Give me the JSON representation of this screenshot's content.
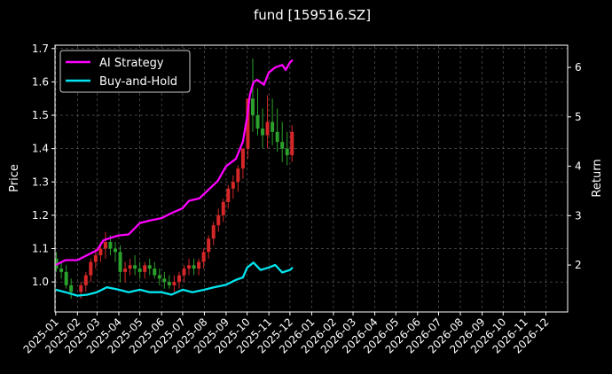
{
  "chart_data": {
    "type": "line",
    "title": "fund [159516.SZ]",
    "ylabel_left": "Price",
    "ylabel_right": "Return",
    "ylim_left": [
      0.91,
      1.71
    ],
    "ylim_right": [
      1.05,
      6.45
    ],
    "yticks_left": [
      "1.0",
      "1.1",
      "1.2",
      "1.3",
      "1.4",
      "1.5",
      "1.6",
      "1.7"
    ],
    "yticks_right": [
      "2",
      "3",
      "4",
      "5",
      "6"
    ],
    "x_tick_labels": [
      "2025-01",
      "2025-02",
      "2025-03",
      "2025-04",
      "2025-05",
      "2025-06",
      "2025-07",
      "2025-08",
      "2025-09",
      "2025-10",
      "2025-11",
      "2025-12",
      "2026-01",
      "2026-02",
      "2026-03",
      "2026-04",
      "2026-05",
      "2026-06",
      "2026-07",
      "2026-08",
      "2026-09",
      "2026-10",
      "2026-11",
      "2026-12"
    ],
    "grid": true,
    "legend_position": "top-left",
    "candles": {
      "up_color": "#d62728",
      "down_color": "#2ca02c",
      "dates": [
        "2025-01-02",
        "2025-01-09",
        "2025-01-16",
        "2025-01-23",
        "2025-02-06",
        "2025-02-13",
        "2025-02-20",
        "2025-02-27",
        "2025-03-06",
        "2025-03-13",
        "2025-03-20",
        "2025-03-27",
        "2025-04-03",
        "2025-04-10",
        "2025-04-17",
        "2025-04-24",
        "2025-05-01",
        "2025-05-08",
        "2025-05-15",
        "2025-05-22",
        "2025-05-29",
        "2025-06-05",
        "2025-06-12",
        "2025-06-19",
        "2025-06-26",
        "2025-07-03",
        "2025-07-10",
        "2025-07-17",
        "2025-07-24",
        "2025-07-31",
        "2025-08-07",
        "2025-08-14",
        "2025-08-21",
        "2025-08-28",
        "2025-09-04",
        "2025-09-11",
        "2025-09-18",
        "2025-09-25",
        "2025-10-02",
        "2025-10-09",
        "2025-10-16",
        "2025-10-23",
        "2025-10-30",
        "2025-11-06",
        "2025-11-13",
        "2025-11-20",
        "2025-11-27",
        "2025-12-04"
      ],
      "open": [
        1.07,
        1.04,
        1.03,
        0.99,
        0.97,
        0.99,
        1.02,
        1.06,
        1.08,
        1.1,
        1.12,
        1.1,
        1.09,
        1.03,
        1.04,
        1.05,
        1.04,
        1.03,
        1.05,
        1.04,
        1.02,
        1.01,
        1.0,
        0.99,
        1.0,
        1.02,
        1.04,
        1.05,
        1.04,
        1.06,
        1.09,
        1.13,
        1.17,
        1.2,
        1.24,
        1.28,
        1.3,
        1.34,
        1.4,
        1.55,
        1.5,
        1.46,
        1.44,
        1.48,
        1.45,
        1.42,
        1.4,
        1.38
      ],
      "high": [
        1.09,
        1.06,
        1.05,
        1.01,
        1.0,
        1.03,
        1.07,
        1.1,
        1.12,
        1.15,
        1.14,
        1.12,
        1.11,
        1.06,
        1.07,
        1.08,
        1.06,
        1.06,
        1.07,
        1.06,
        1.04,
        1.03,
        1.02,
        1.02,
        1.03,
        1.05,
        1.07,
        1.07,
        1.07,
        1.1,
        1.14,
        1.18,
        1.22,
        1.25,
        1.29,
        1.32,
        1.35,
        1.4,
        1.52,
        1.67,
        1.58,
        1.52,
        1.56,
        1.55,
        1.52,
        1.48,
        1.45,
        1.47
      ],
      "low": [
        1.03,
        1.01,
        0.98,
        0.95,
        0.95,
        0.97,
        1.0,
        1.04,
        1.06,
        1.07,
        1.08,
        1.06,
        1.0,
        1.0,
        1.02,
        1.02,
        1.01,
        1.01,
        1.02,
        1.01,
        0.99,
        0.98,
        0.98,
        0.97,
        0.98,
        1.0,
        1.02,
        1.02,
        1.02,
        1.04,
        1.07,
        1.11,
        1.15,
        1.18,
        1.22,
        1.25,
        1.27,
        1.31,
        1.37,
        1.45,
        1.44,
        1.4,
        1.4,
        1.41,
        1.39,
        1.36,
        1.35,
        1.36
      ],
      "close": [
        1.04,
        1.03,
        0.99,
        0.97,
        0.99,
        1.02,
        1.06,
        1.08,
        1.1,
        1.12,
        1.1,
        1.09,
        1.03,
        1.04,
        1.05,
        1.04,
        1.03,
        1.05,
        1.04,
        1.02,
        1.01,
        1.0,
        0.99,
        1.0,
        1.02,
        1.04,
        1.05,
        1.04,
        1.06,
        1.09,
        1.13,
        1.17,
        1.2,
        1.24,
        1.28,
        1.3,
        1.34,
        1.4,
        1.55,
        1.5,
        1.46,
        1.44,
        1.48,
        1.45,
        1.42,
        1.4,
        1.38,
        1.45
      ]
    },
    "series": [
      {
        "name": "AI Strategy",
        "color": "#ff00ff",
        "axis": "right",
        "x": [
          "2025-01-01",
          "2025-01-15",
          "2025-02-01",
          "2025-02-15",
          "2025-03-01",
          "2025-03-10",
          "2025-03-20",
          "2025-04-01",
          "2025-04-15",
          "2025-05-01",
          "2025-05-15",
          "2025-06-01",
          "2025-06-15",
          "2025-07-01",
          "2025-07-10",
          "2025-07-25",
          "2025-08-05",
          "2025-08-20",
          "2025-09-01",
          "2025-09-15",
          "2025-09-25",
          "2025-10-01",
          "2025-10-05",
          "2025-10-10",
          "2025-10-15",
          "2025-10-25",
          "2025-11-01",
          "2025-11-10",
          "2025-11-20",
          "2025-11-25",
          "2025-12-01",
          "2025-12-05"
        ],
        "values": [
          2.0,
          2.1,
          2.1,
          2.2,
          2.3,
          2.5,
          2.55,
          2.6,
          2.62,
          2.85,
          2.9,
          2.95,
          3.05,
          3.15,
          3.3,
          3.35,
          3.5,
          3.7,
          4.0,
          4.15,
          4.5,
          5.0,
          5.45,
          5.7,
          5.75,
          5.65,
          5.9,
          6.0,
          6.05,
          5.95,
          6.1,
          6.15
        ]
      },
      {
        "name": "Buy-and-Hold",
        "color": "#00e5ee",
        "axis": "right",
        "x": [
          "2025-01-01",
          "2025-01-15",
          "2025-02-01",
          "2025-02-15",
          "2025-03-01",
          "2025-03-15",
          "2025-04-01",
          "2025-04-15",
          "2025-05-01",
          "2025-05-15",
          "2025-06-01",
          "2025-06-15",
          "2025-07-01",
          "2025-07-15",
          "2025-08-01",
          "2025-08-15",
          "2025-09-01",
          "2025-09-15",
          "2025-09-25",
          "2025-10-01",
          "2025-10-10",
          "2025-10-20",
          "2025-11-01",
          "2025-11-10",
          "2025-11-20",
          "2025-12-01",
          "2025-12-05"
        ],
        "values": [
          1.5,
          1.45,
          1.38,
          1.4,
          1.45,
          1.55,
          1.5,
          1.45,
          1.5,
          1.45,
          1.45,
          1.4,
          1.5,
          1.45,
          1.5,
          1.55,
          1.6,
          1.7,
          1.75,
          1.95,
          2.05,
          1.9,
          1.95,
          2.0,
          1.85,
          1.9,
          1.95
        ]
      }
    ]
  }
}
